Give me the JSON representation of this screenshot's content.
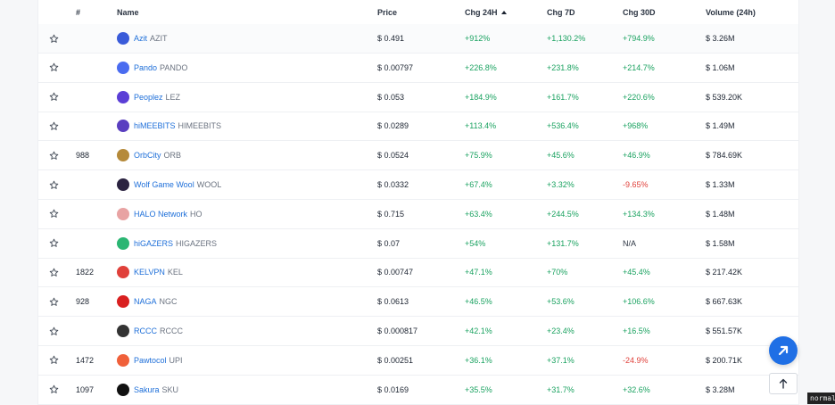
{
  "columns": {
    "rank": "#",
    "name": "Name",
    "price": "Price",
    "chg24h": "Chg 24H",
    "chg7d": "Chg 7D",
    "chg30d": "Chg 30D",
    "volume": "Volume (24h)"
  },
  "sort": {
    "column": "chg24h",
    "direction": "desc"
  },
  "rows": [
    {
      "rank": "",
      "name": "Azit",
      "symbol": "AZIT",
      "price": "$ 0.491",
      "chg24h": "+912%",
      "chg7d": "+1,130.2%",
      "chg30d": "+794.9%",
      "volume": "$ 3.26M",
      "logo_color": "#3a5bd9",
      "logo_icon": "azit-logo"
    },
    {
      "rank": "",
      "name": "Pando",
      "symbol": "PANDO",
      "price": "$ 0.00797",
      "chg24h": "+226.8%",
      "chg7d": "+231.8%",
      "chg30d": "+214.7%",
      "volume": "$ 1.06M",
      "logo_color": "#4a6cf0",
      "logo_icon": "pando-logo"
    },
    {
      "rank": "",
      "name": "Peoplez",
      "symbol": "LEZ",
      "price": "$ 0.053",
      "chg24h": "+184.9%",
      "chg7d": "+161.7%",
      "chg30d": "+220.6%",
      "volume": "$ 539.20K",
      "logo_color": "#5b3fd6",
      "logo_icon": "peoplez-logo"
    },
    {
      "rank": "",
      "name": "hiMEEBITS",
      "symbol": "HIMEEBITS",
      "price": "$ 0.0289",
      "chg24h": "+113.4%",
      "chg7d": "+536.4%",
      "chg30d": "+968%",
      "volume": "$ 1.49M",
      "logo_color": "#5a3fc0",
      "logo_icon": "himeebits-logo"
    },
    {
      "rank": "988",
      "name": "OrbCity",
      "symbol": "ORB",
      "price": "$ 0.0524",
      "chg24h": "+75.9%",
      "chg7d": "+45.6%",
      "chg30d": "+46.9%",
      "volume": "$ 784.69K",
      "logo_color": "#b58a3a",
      "logo_icon": "orbcity-logo"
    },
    {
      "rank": "",
      "name": "Wolf Game Wool",
      "symbol": "WOOL",
      "price": "$ 0.0332",
      "chg24h": "+67.4%",
      "chg7d": "+3.32%",
      "chg30d": "-9.65%",
      "volume": "$ 1.33M",
      "logo_color": "#2b2340",
      "logo_icon": "wolf-game-logo"
    },
    {
      "rank": "",
      "name": "HALO Network",
      "symbol": "HO",
      "price": "$ 0.715",
      "chg24h": "+63.4%",
      "chg7d": "+244.5%",
      "chg30d": "+134.3%",
      "volume": "$ 1.48M",
      "logo_color": "#e8a3a3",
      "logo_icon": "halo-logo"
    },
    {
      "rank": "",
      "name": "hiGAZERS",
      "symbol": "HIGAZERS",
      "price": "$ 0.07",
      "chg24h": "+54%",
      "chg7d": "+131.7%",
      "chg30d": "N/A",
      "volume": "$ 1.58M",
      "logo_color": "#2bb673",
      "logo_icon": "higazers-logo"
    },
    {
      "rank": "1822",
      "name": "KELVPN",
      "symbol": "KEL",
      "price": "$ 0.00747",
      "chg24h": "+47.1%",
      "chg7d": "+70%",
      "chg30d": "+45.4%",
      "volume": "$ 217.42K",
      "logo_color": "#e0403a",
      "logo_icon": "kelvpn-logo"
    },
    {
      "rank": "928",
      "name": "NAGA",
      "symbol": "NGC",
      "price": "$ 0.0613",
      "chg24h": "+46.5%",
      "chg7d": "+53.6%",
      "chg30d": "+106.6%",
      "volume": "$ 667.63K",
      "logo_color": "#d92020",
      "logo_icon": "naga-logo"
    },
    {
      "rank": "",
      "name": "RCCC",
      "symbol": "RCCC",
      "price": "$ 0.000817",
      "chg24h": "+42.1%",
      "chg7d": "+23.4%",
      "chg30d": "+16.5%",
      "volume": "$ 551.57K",
      "logo_color": "#333333",
      "logo_icon": "rccc-logo"
    },
    {
      "rank": "1472",
      "name": "Pawtocol",
      "symbol": "UPI",
      "price": "$ 0.00251",
      "chg24h": "+36.1%",
      "chg7d": "+37.1%",
      "chg30d": "-24.9%",
      "volume": "$ 200.71K",
      "logo_color": "#f0603a",
      "logo_icon": "pawtocol-logo"
    },
    {
      "rank": "1097",
      "name": "Sakura",
      "symbol": "SKU",
      "price": "$ 0.0169",
      "chg24h": "+35.5%",
      "chg7d": "+31.7%",
      "chg30d": "+32.6%",
      "volume": "$ 3.28M",
      "logo_color": "#111111",
      "logo_icon": "sakura-logo"
    }
  ],
  "status_label": "normal",
  "colors": {
    "positive": "#1aa260",
    "negative": "#e0403a",
    "link": "#1e6fd9",
    "fab": "#1f6fe5"
  }
}
